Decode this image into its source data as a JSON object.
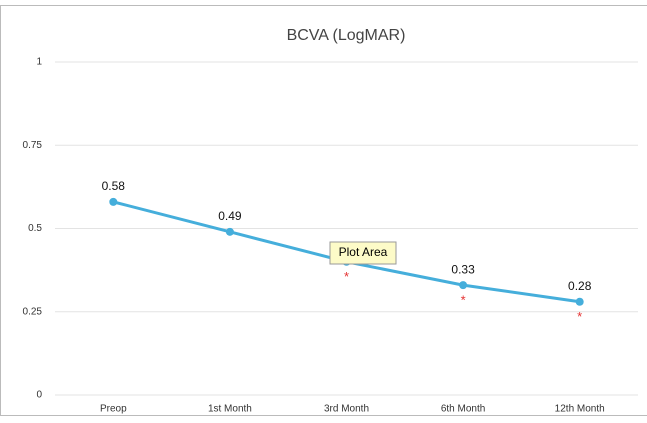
{
  "chart_data": {
    "type": "line",
    "title": "BCVA (LogMAR)",
    "categories": [
      "Preop",
      "1st Month",
      "3rd Month",
      "6th Month",
      "12th Month"
    ],
    "series": [
      {
        "name": "BCVA",
        "color": "#45aedb",
        "values": [
          0.58,
          0.49,
          0.4,
          0.33,
          0.28
        ],
        "value_labels": [
          "0.58",
          "0.49",
          "0.40",
          "0.33",
          "0.28"
        ]
      }
    ],
    "ylim": [
      0,
      1
    ],
    "yticks": [
      0,
      0.25,
      0.5,
      0.75,
      1
    ],
    "grid": true,
    "annotations": [
      {
        "text": "*",
        "category": "3rd Month"
      },
      {
        "text": "*",
        "category": "6th Month"
      },
      {
        "text": "*",
        "category": "12th Month"
      }
    ],
    "tooltip": "Plot Area"
  }
}
